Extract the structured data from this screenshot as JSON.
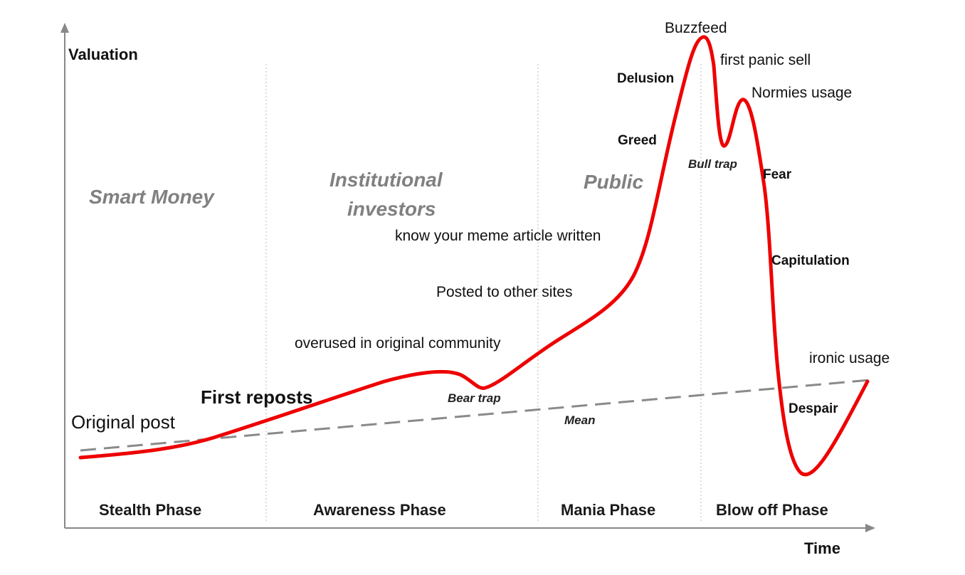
{
  "chart_data": {
    "type": "line",
    "xlabel": "Time",
    "ylabel": "Valuation",
    "phases": [
      "Stealth Phase",
      "Awareness Phase",
      "Mania Phase",
      "Blow off Phase"
    ],
    "groups": [
      "Smart Money",
      "Institutional investors",
      "Public"
    ],
    "group_lines": [
      "Institutional",
      "investors"
    ],
    "series": [
      {
        "name": "Mean",
        "style": "dashed",
        "color": "#888888"
      },
      {
        "style": "solid",
        "color": "#ee0000"
      }
    ],
    "annotations": [
      "Original post",
      "First reposts",
      "overused in original community",
      "Bear trap",
      "Posted to other sites",
      "know your meme article written",
      "Greed",
      "Delusion",
      "Buzzfeed",
      "first panic sell",
      "Bull trap",
      "Normies usage",
      "Fear",
      "Capitulation",
      "Despair",
      "ironic usage",
      "Mean"
    ],
    "grid": false,
    "phase_dividers": 3
  }
}
